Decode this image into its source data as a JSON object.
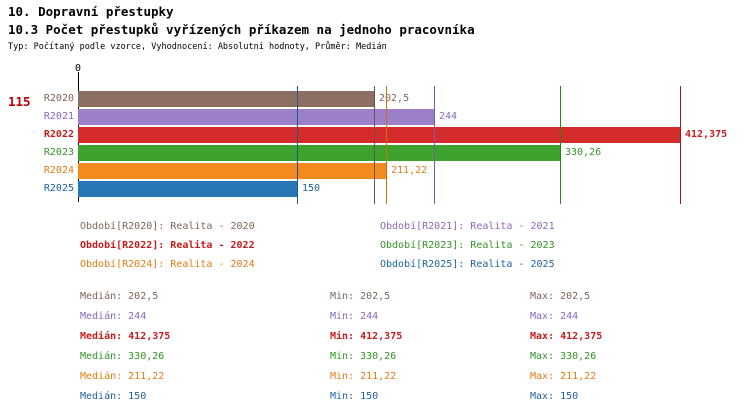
{
  "header": {
    "title_line1": "10. Dopravní přestupky",
    "title_line2": "10.3 Počet přestupků vyřízených příkazem na jednoho pracovníka",
    "meta_line": "Typ: Počítaný podle vzorce, Vyhodnocení: Absolutní hodnoty, Průměr: Medián"
  },
  "row_marker": "115",
  "chart_data": {
    "type": "bar",
    "orientation": "horizontal",
    "x_axis_zero_label": "0",
    "value_axis_min": 0,
    "categories": [
      "R2020",
      "R2021",
      "R2022",
      "R2023",
      "R2024",
      "R2025"
    ],
    "series": [
      {
        "category": "R2020",
        "value": 202.5,
        "value_label": "202,5",
        "bar_color": "#8d6e63",
        "text_color": "#7d6558",
        "median_line_color": "#6b5349",
        "legend_label": "Období[R2020]: Realita - 2020",
        "median_text": "Medián: 202,5",
        "min_text": "Min: 202,5",
        "max_text": "Max: 202,5",
        "bold": false
      },
      {
        "category": "R2021",
        "value": 244,
        "value_label": "244",
        "bar_color": "#9c7fc9",
        "text_color": "#8668bb",
        "median_line_color": "#7a5ab5",
        "legend_label": "Období[R2021]: Realita - 2021",
        "median_text": "Medián: 244",
        "min_text": "Min: 244",
        "max_text": "Max: 244",
        "bold": false
      },
      {
        "category": "R2022",
        "value": 412.375,
        "value_label": "412,375",
        "bar_color": "#d42c2c",
        "text_color": "#c21d1d",
        "median_line_color": "#a81414",
        "legend_label": "Období[R2022]: Realita - 2022",
        "median_text": "Medián: 412,375",
        "min_text": "Min: 412,375",
        "max_text": "Max: 412,375",
        "bold": true
      },
      {
        "category": "R2023",
        "value": 330.26,
        "value_label": "330,26",
        "bar_color": "#3da32d",
        "text_color": "#349427",
        "median_line_color": "#2b831d",
        "legend_label": "Období[R2023]: Realita - 2023",
        "median_text": "Medián: 330,26",
        "min_text": "Min: 330,26",
        "max_text": "Max: 330,26",
        "bold": false
      },
      {
        "category": "R2024",
        "value": 211.22,
        "value_label": "211,22",
        "bar_color": "#f28a1e",
        "text_color": "#e07c12",
        "median_line_color": "#d0710c",
        "legend_label": "Období[R2024]: Realita - 2024",
        "median_text": "Medián: 211,22",
        "min_text": "Min: 211,22",
        "max_text": "Max: 211,22",
        "bold": false
      },
      {
        "category": "R2025",
        "value": 150,
        "value_label": "150",
        "bar_color": "#2878b5",
        "text_color": "#1f639c",
        "median_line_color": "#1a5a90",
        "legend_label": "Období[R2025]: Realita - 2025",
        "median_text": "Medián: 150",
        "min_text": "Min: 150",
        "max_text": "Max: 150",
        "bold": false
      }
    ],
    "legend_columns": [
      [
        0,
        2,
        4
      ],
      [
        1,
        3,
        5
      ]
    ]
  }
}
